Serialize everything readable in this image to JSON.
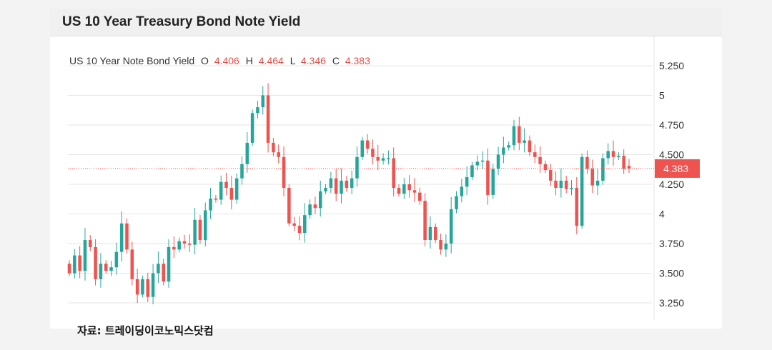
{
  "colors": {
    "up": "#26a69a",
    "down": "#ef5350",
    "grid": "#e6e6e6",
    "last_price_line": "#ef5350",
    "last_price_badge": "#ef5350"
  },
  "header": {
    "title": "US 10 Year Treasury Bond Note Yield"
  },
  "legend": {
    "name": "US 10 Year Note Bond Yield",
    "o_label": "O",
    "o_value": "4.406",
    "h_label": "H",
    "h_value": "4.464",
    "l_label": "L",
    "l_value": "4.346",
    "c_label": "C",
    "c_value": "4.383"
  },
  "last_price": "4.383",
  "source": "자료: 트레이딩이코노믹스닷컴",
  "chart_data": {
    "type": "candlestick",
    "title": "US 10 Year Treasury Bond Note Yield",
    "series": [
      {
        "name": "US 10 Year Note Bond Yield",
        "ohlc_last": {
          "o": 4.406,
          "h": 4.464,
          "l": 4.346,
          "c": 4.383
        }
      }
    ],
    "y_axis": {
      "ticks": [
        "5.250",
        "5",
        "4.750",
        "4.500",
        "4.250",
        "4",
        "3.750",
        "3.500",
        "3.250"
      ],
      "tick_values": [
        5.25,
        5.0,
        4.75,
        4.5,
        4.25,
        4.0,
        3.75,
        3.5,
        3.25
      ],
      "position": "right"
    },
    "grid": true,
    "close": [
      3.5,
      3.65,
      3.52,
      3.78,
      3.72,
      3.45,
      3.58,
      3.52,
      3.55,
      3.68,
      3.92,
      3.7,
      3.45,
      3.32,
      3.45,
      3.3,
      3.5,
      3.58,
      3.43,
      3.72,
      3.7,
      3.77,
      3.75,
      3.74,
      3.95,
      3.78,
      4.03,
      4.13,
      4.12,
      4.27,
      4.22,
      4.12,
      4.3,
      4.42,
      4.6,
      4.85,
      4.9,
      5.0,
      4.6,
      4.52,
      4.48,
      4.22,
      3.92,
      3.9,
      3.84,
      3.99,
      4.08,
      4.05,
      4.19,
      4.22,
      4.3,
      4.17,
      4.28,
      4.22,
      4.3,
      4.48,
      4.62,
      4.55,
      4.48,
      4.45,
      4.47,
      4.47,
      4.22,
      4.17,
      4.25,
      4.2,
      4.18,
      4.11,
      3.78,
      3.89,
      3.78,
      3.7,
      3.75,
      4.04,
      4.15,
      4.23,
      4.31,
      4.41,
      4.44,
      4.45,
      4.16,
      4.38,
      4.5,
      4.56,
      4.58,
      4.74,
      4.6,
      4.62,
      4.52,
      4.48,
      4.42,
      4.37,
      4.28,
      4.22,
      4.28,
      4.21,
      4.22,
      3.9,
      4.48,
      4.38,
      4.24,
      4.28,
      4.47,
      4.53,
      4.48,
      4.49,
      4.38,
      4.383
    ]
  }
}
